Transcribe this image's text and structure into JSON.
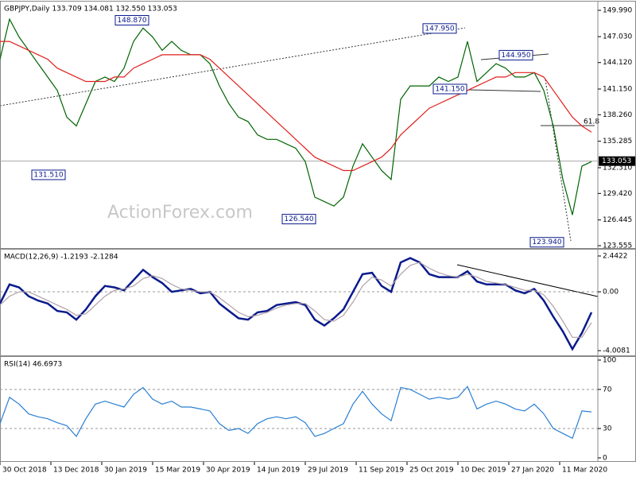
{
  "chart_data": [
    {
      "type": "line",
      "title": "GBPJPY,Daily  133.709 134.081 132.550 133.053",
      "watermark": "ActionForex.com",
      "xlim": [
        0,
        376
      ],
      "x": [
        0,
        6,
        12,
        18,
        24,
        30,
        36,
        42,
        48,
        54,
        60,
        66,
        72,
        78,
        84,
        90,
        96,
        102,
        108,
        114,
        120,
        126,
        132,
        138,
        144,
        150,
        156,
        162,
        168,
        174,
        180,
        186,
        192,
        198,
        204,
        210,
        216,
        222,
        228,
        234,
        240,
        246,
        252,
        258,
        264,
        270,
        276,
        282,
        288,
        294,
        300,
        306,
        312,
        318,
        324,
        330,
        336,
        342,
        348,
        354,
        360,
        366,
        372
      ],
      "ylim": [
        123.29,
        150.88
      ],
      "yticks": [
        {
          "value": 149.99,
          "label": "149.990"
        },
        {
          "value": 147.03,
          "label": "147.030"
        },
        {
          "value": 144.12,
          "label": "144.120"
        },
        {
          "value": 141.15,
          "label": "141.150"
        },
        {
          "value": 138.26,
          "label": "138.260"
        },
        135.285,
        {
          "value": 132.31,
          "label": "132.310"
        },
        {
          "value": 129.42,
          "label": "129.420"
        },
        126.445,
        123.555
      ],
      "last": 133.053,
      "series": [
        {
          "name": "GBPJPY",
          "color": "#006400",
          "values": [
            144.5,
            149,
            147,
            145.5,
            144,
            142.5,
            141,
            138,
            137,
            139.5,
            142,
            142.5,
            142,
            143.5,
            146.5,
            148,
            147,
            145.5,
            146.5,
            145.5,
            145,
            145,
            144,
            141.5,
            139.5,
            138,
            137.5,
            136,
            135.5,
            135.5,
            135,
            134.5,
            133,
            129,
            128.5,
            128,
            129,
            132.5,
            135,
            133.5,
            132,
            131,
            140,
            141.5,
            141.5,
            141.5,
            142.5,
            142,
            142.5,
            146.5,
            142,
            143,
            144,
            143.5,
            142.5,
            142.5,
            143,
            141,
            137,
            131,
            127,
            132.5,
            133
          ]
        },
        {
          "name": "SMA",
          "color": "#e0201c",
          "values": [
            146.5,
            146.5,
            146,
            145.5,
            145,
            144.5,
            143.5,
            143,
            142.5,
            142,
            142,
            142,
            142.5,
            142.5,
            143.5,
            144,
            144.5,
            145,
            145,
            145,
            145,
            145,
            144.5,
            143.5,
            142.5,
            141.5,
            140.5,
            139.5,
            138.5,
            137.5,
            136.5,
            135.5,
            134.5,
            133.5,
            133,
            132.5,
            132,
            132,
            132.5,
            133,
            133.5,
            134.5,
            136,
            137,
            138,
            139,
            139.5,
            140,
            140.5,
            141,
            141.5,
            142,
            142.5,
            142.5,
            143,
            143,
            143,
            142.5,
            141,
            139.5,
            138,
            137,
            136.3
          ]
        }
      ],
      "annotations": [
        {
          "text": "148.870",
          "x": 83,
          "value": 148.87
        },
        {
          "text": "131.510",
          "x": 30.5,
          "value": 131.51
        },
        {
          "text": "126.540",
          "x": 188,
          "value": 126.54
        },
        {
          "text": "147.950",
          "x": 276.5,
          "value": 147.95
        },
        {
          "text": "144.950",
          "x": 324.5,
          "value": 144.95
        },
        {
          "text": "141.150",
          "x": 283,
          "value": 141.15
        },
        {
          "text": "123.940",
          "x": 344,
          "value": 123.94
        }
      ],
      "fib_label": "61.8"
    },
    {
      "type": "line",
      "title": "MACD(12,26,9) -1.2193 -2.1284",
      "xlim": [
        0,
        376
      ],
      "x": [
        0,
        6,
        12,
        18,
        24,
        30,
        36,
        42,
        48,
        54,
        60,
        66,
        72,
        78,
        84,
        90,
        96,
        102,
        108,
        114,
        120,
        126,
        132,
        138,
        144,
        150,
        156,
        162,
        168,
        174,
        180,
        186,
        192,
        198,
        204,
        210,
        216,
        222,
        228,
        234,
        240,
        246,
        252,
        258,
        264,
        270,
        276,
        282,
        288,
        294,
        300,
        306,
        312,
        318,
        324,
        330,
        336,
        342,
        348,
        354,
        360,
        366,
        372
      ],
      "ylim": [
        -4.33,
        2.82
      ],
      "yticks": [
        2.4422,
        {
          "value": 0,
          "label": "0.00"
        },
        -4.0081
      ],
      "levels": [
        0
      ],
      "series": [
        {
          "name": "MACD",
          "color": "#0a1a8c",
          "values": [
            -0.8,
            0.5,
            0.3,
            -0.3,
            -0.6,
            -0.8,
            -1.3,
            -1.4,
            -1.9,
            -1.2,
            -0.3,
            0.4,
            0.3,
            0.1,
            0.8,
            1.5,
            1.0,
            0.6,
            0.0,
            0.1,
            0.2,
            -0.1,
            0.0,
            -0.8,
            -1.3,
            -1.8,
            -1.9,
            -1.4,
            -1.3,
            -0.9,
            -0.8,
            -0.7,
            -0.9,
            -1.9,
            -2.3,
            -1.8,
            -1.2,
            0.0,
            1.2,
            1.3,
            0.4,
            0.0,
            2.0,
            2.3,
            2.0,
            1.2,
            1.0,
            1.0,
            1.0,
            1.4,
            0.7,
            0.5,
            0.5,
            0.5,
            0.1,
            -0.1,
            0.2,
            -0.6,
            -1.7,
            -2.7,
            -3.9,
            -2.8,
            -1.4
          ]
        },
        {
          "name": "Signal",
          "color": "#b0a0a8",
          "values": [
            -0.9,
            -0.3,
            0.0,
            0.0,
            -0.3,
            -0.6,
            -0.9,
            -1.2,
            -1.6,
            -1.5,
            -0.9,
            -0.3,
            0.1,
            0.2,
            0.4,
            0.9,
            1.1,
            0.9,
            0.5,
            0.2,
            0.1,
            0.0,
            0.0,
            -0.4,
            -0.9,
            -1.4,
            -1.7,
            -1.6,
            -1.4,
            -1.1,
            -0.9,
            -0.8,
            -0.8,
            -1.3,
            -1.9,
            -2.0,
            -1.6,
            -0.7,
            0.4,
            1.0,
            0.8,
            0.4,
            1.2,
            1.8,
            2.0,
            1.6,
            1.3,
            1.1,
            1.0,
            1.2,
            1.0,
            0.7,
            0.6,
            0.5,
            0.3,
            0.1,
            0.1,
            -0.2,
            -1.0,
            -2.0,
            -3.1,
            -3.1,
            -2.1
          ]
        }
      ]
    },
    {
      "type": "line",
      "title": "RSI(14) 46.6973",
      "xlim": [
        0,
        376
      ],
      "x": [
        0,
        6,
        12,
        18,
        24,
        30,
        36,
        42,
        48,
        54,
        60,
        66,
        72,
        78,
        84,
        90,
        96,
        102,
        108,
        114,
        120,
        126,
        132,
        138,
        144,
        150,
        156,
        162,
        168,
        174,
        180,
        186,
        192,
        198,
        204,
        210,
        216,
        222,
        228,
        234,
        240,
        246,
        252,
        258,
        264,
        270,
        276,
        282,
        288,
        294,
        300,
        306,
        312,
        318,
        324,
        330,
        336,
        342,
        348,
        354,
        360,
        366,
        372
      ],
      "ylim": [
        -3.3,
        102.4
      ],
      "yticks": [
        100,
        70,
        30,
        0
      ],
      "levels": [
        70,
        30
      ],
      "series": [
        {
          "name": "RSI",
          "color": "#2a7fd4",
          "values": [
            35,
            62,
            55,
            45,
            42,
            40,
            36,
            33,
            22,
            40,
            55,
            58,
            55,
            52,
            65,
            72,
            60,
            55,
            58,
            52,
            52,
            50,
            48,
            35,
            28,
            30,
            25,
            35,
            40,
            42,
            40,
            42,
            36,
            22,
            25,
            30,
            35,
            55,
            68,
            55,
            45,
            38,
            72,
            70,
            65,
            60,
            62,
            60,
            62,
            73,
            50,
            55,
            58,
            55,
            50,
            48,
            55,
            45,
            30,
            25,
            20,
            48,
            47
          ]
        }
      ],
      "xticks": [
        {
          "value": 0,
          "label": "30 Oct 2018"
        },
        {
          "value": 32,
          "label": "13 Dec 2018"
        },
        {
          "value": 64,
          "label": "30 Jan 2019"
        },
        {
          "value": 96,
          "label": "15 Mar 2019"
        },
        {
          "value": 128,
          "label": "30 Apr 2019"
        },
        {
          "value": 160,
          "label": "14 Jun 2019"
        },
        {
          "value": 192,
          "label": "29 Jul 2019"
        },
        {
          "value": 224,
          "label": "11 Sep 2019"
        },
        {
          "value": 256,
          "label": "25 Oct 2019"
        },
        {
          "value": 288,
          "label": "10 Dec 2019"
        },
        {
          "value": 320,
          "label": "27 Jan 2020"
        },
        {
          "value": 352,
          "label": "11 Mar 2020"
        }
      ]
    }
  ]
}
